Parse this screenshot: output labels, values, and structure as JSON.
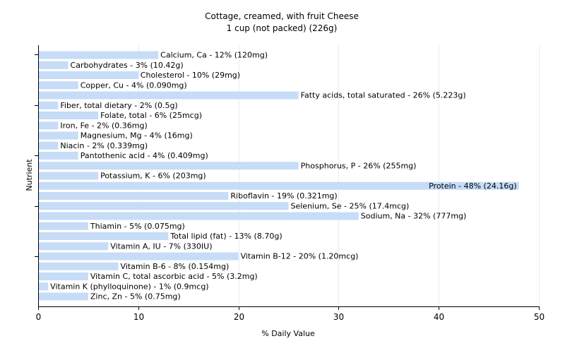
{
  "chart_data": {
    "type": "bar",
    "orientation": "horizontal",
    "title": "Cottage, creamed, with fruit Cheese",
    "subtitle": "1 cup (not packed) (226g)",
    "xlabel": "% Daily Value",
    "ylabel": "Nutrient",
    "xlim": [
      0,
      50
    ],
    "xticks": [
      0,
      10,
      20,
      30,
      40,
      50
    ],
    "grid": true,
    "bar_color": "#c6dcf7",
    "categories": [
      "Calcium, Ca",
      "Carbohydrates",
      "Cholesterol",
      "Copper, Cu",
      "Fatty acids, total saturated",
      "Fiber, total dietary",
      "Folate, total",
      "Iron, Fe",
      "Magnesium, Mg",
      "Niacin",
      "Pantothenic acid",
      "Phosphorus, P",
      "Potassium, K",
      "Protein",
      "Riboflavin",
      "Selenium, Se",
      "Sodium, Na",
      "Thiamin",
      "Total lipid (fat)",
      "Vitamin A, IU",
      "Vitamin B-12",
      "Vitamin B-6",
      "Vitamin C, total ascorbic acid",
      "Vitamin K (phylloquinone)",
      "Zinc, Zn"
    ],
    "values": [
      12,
      3,
      10,
      4,
      26,
      2,
      6,
      2,
      4,
      2,
      4,
      26,
      6,
      48,
      19,
      25,
      32,
      5,
      13,
      7,
      20,
      8,
      5,
      1,
      5
    ],
    "labels": [
      "Calcium, Ca - 12% (120mg)",
      "Carbohydrates - 3% (10.42g)",
      "Cholesterol - 10% (29mg)",
      "Copper, Cu - 4% (0.090mg)",
      "Fatty acids, total saturated - 26% (5.223g)",
      "Fiber, total dietary - 2% (0.5g)",
      "Folate, total - 6% (25mcg)",
      "Iron, Fe - 2% (0.36mg)",
      "Magnesium, Mg - 4% (16mg)",
      "Niacin - 2% (0.339mg)",
      "Pantothenic acid - 4% (0.409mg)",
      "Phosphorus, P - 26% (255mg)",
      "Potassium, K - 6% (203mg)",
      "Protein - 48% (24.16g)",
      "Riboflavin - 19% (0.321mg)",
      "Selenium, Se - 25% (17.4mcg)",
      "Sodium, Na - 32% (777mg)",
      "Thiamin - 5% (0.075mg)",
      "Total lipid (fat) - 13% (8.70g)",
      "Vitamin A, IU - 7% (330IU)",
      "Vitamin B-12 - 20% (1.20mcg)",
      "Vitamin B-6 - 8% (0.154mg)",
      "Vitamin C, total ascorbic acid - 5% (3.2mg)",
      "Vitamin K (phylloquinone) - 1% (0.9mcg)",
      "Zinc, Zn - 5% (0.75mg)"
    ]
  }
}
